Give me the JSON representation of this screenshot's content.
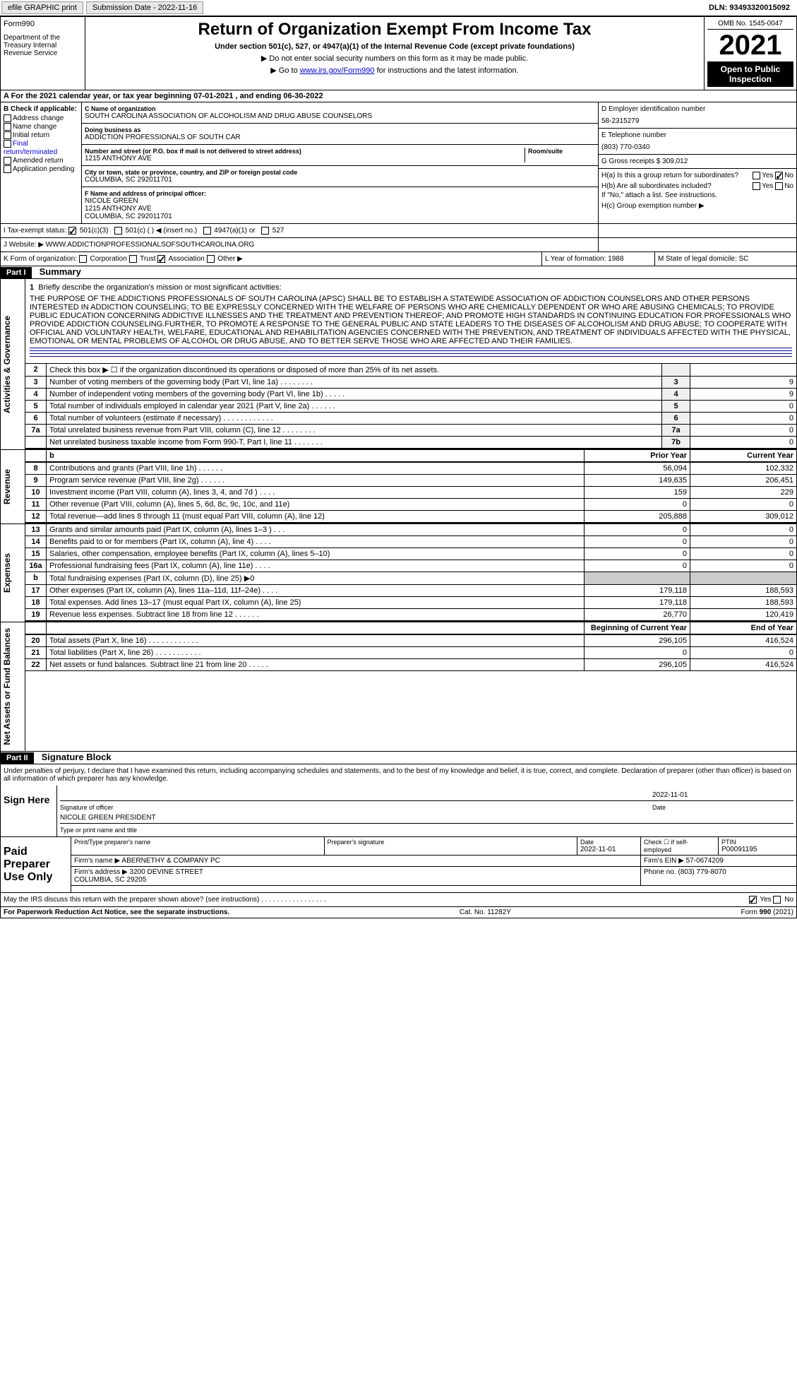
{
  "topbar": {
    "efile": "efile GRAPHIC print",
    "submission_label": "Submission Date - 2022-11-16",
    "dln": "DLN: 93493320015092"
  },
  "header": {
    "form_label": "Form",
    "form_number": "990",
    "dept": "Department of the Treasury Internal Revenue Service",
    "title": "Return of Organization Exempt From Income Tax",
    "subtitle": "Under section 501(c), 527, or 4947(a)(1) of the Internal Revenue Code (except private foundations)",
    "instr1": "▶ Do not enter social security numbers on this form as it may be made public.",
    "instr2_prefix": "▶ Go to ",
    "instr2_link": "www.irs.gov/Form990",
    "instr2_suffix": " for instructions and the latest information.",
    "omb": "OMB No. 1545-0047",
    "year": "2021",
    "open": "Open to Public Inspection"
  },
  "period": "A For the 2021 calendar year, or tax year beginning 07-01-2021    , and ending 06-30-2022",
  "section_b": {
    "header": "B Check if applicable:",
    "items": [
      "Address change",
      "Name change",
      "Initial return",
      "Final return/terminated",
      "Amended return",
      "Application pending"
    ]
  },
  "section_c": {
    "name_label": "C Name of organization",
    "name": "SOUTH CAROLINA ASSOCIATION OF ALCOHOLISM AND DRUG ABUSE COUNSELORS",
    "dba_label": "Doing business as",
    "dba": "ADDICTION PROFESSIONALS OF SOUTH CAR",
    "addr_label": "Number and street (or P.O. box if mail is not delivered to street address)",
    "addr": "1215 ANTHONY AVE",
    "room_label": "Room/suite",
    "city_label": "City or town, state or province, country, and ZIP or foreign postal code",
    "city": "COLUMBIA, SC  292011701",
    "officer_label": "F  Name and address of principal officer:",
    "officer": "NICOLE GREEN\n1215 ANTHONY AVE\nCOLUMBIA, SC  292011701"
  },
  "section_d": {
    "ein_label": "D Employer identification number",
    "ein": "58-2315279",
    "phone_label": "E Telephone number",
    "phone": "(803) 770-0340",
    "gross_label": "G Gross receipts $",
    "gross": "309,012",
    "ha_label": "H(a)  Is this a group return for subordinates?",
    "hb_label": "H(b)  Are all subordinates included?",
    "hb_note": "If \"No,\" attach a list. See instructions.",
    "hc_label": "H(c)  Group exemption number ▶"
  },
  "tax_status": {
    "label": "I  Tax-exempt status:",
    "opts": [
      "501(c)(3)",
      "501(c) (  ) ◀ (insert no.)",
      "4947(a)(1) or",
      "527"
    ]
  },
  "website": {
    "label": "J  Website: ▶",
    "value": "WWW.ADDICTIONPROFESSIONALSOFSOUTHCAROLINA.ORG"
  },
  "form_org": {
    "label": "K Form of organization:",
    "opts": [
      "Corporation",
      "Trust",
      "Association",
      "Other ▶"
    ],
    "year_label": "L Year of formation: 1988",
    "state_label": "M State of legal domicile: SC"
  },
  "part1": {
    "label": "Part I",
    "title": "Summary"
  },
  "mission": {
    "num": "1",
    "label": "Briefly describe the organization's mission or most significant activities:",
    "text": "THE PURPOSE OF THE ADDICTIONS PROFESSIONALS OF SOUTH CAROLINA (APSC) SHALL BE TO ESTABLISH A STATEWIDE ASSOCIATION OF ADDICTION COUNSELORS AND OTHER PERSONS INTERESTED IN ADDICTION COUNSELING; TO BE EXPRESSLY CONCERNED WITH THE WELFARE OF PERSONS WHO ARE CHEMICALLY DEPENDENT OR WHO ARE ABUSING CHEMICALS; TO PROVIDE PUBLIC EDUCATION CONCERNING ADDICTIVE ILLNESSES AND THE TREATMENT AND PREVENTION THEREOF; AND PROMOTE HIGH STANDARDS IN CONTINUING EDUCATION FOR PROFESSIONALS WHO PROVIDE ADDICTION COUNSELING.FURTHER, TO PROMOTE A RESPONSE TO THE GENERAL PUBLIC AND STATE LEADERS TO THE DISEASES OF ALCOHOLISM AND DRUG ABUSE; TO COOPERATE WITH OFFICIAL AND VOLUNTARY HEALTH, WELFARE, EDUCATIONAL AND REHABILITATION AGENCIES CONCERNED WITH THE PREVENTION, AND TREATMENT OF INDIVIDUALS AFFECTED WITH THE PHYSICAL, EMOTIONAL OR MENTAL PROBLEMS OF ALCOHOL OR DRUG ABUSE, AND TO BETTER SERVE THOSE WHO ARE AFFECTED AND THEIR FAMILIES."
  },
  "lines_single": [
    {
      "num": "2",
      "text": "Check this box ▶ ☐ if the organization discontinued its operations or disposed of more than 25% of its net assets.",
      "box": "",
      "val": ""
    },
    {
      "num": "3",
      "text": "Number of voting members of the governing body (Part VI, line 1a)  .    .    .    .    .    .    .    .",
      "box": "3",
      "val": "9"
    },
    {
      "num": "4",
      "text": "Number of independent voting members of the governing body (Part VI, line 1b)   .    .    .    .    .",
      "box": "4",
      "val": "9"
    },
    {
      "num": "5",
      "text": "Total number of individuals employed in calendar year 2021 (Part V, line 2a)   .    .    .    .    .    .",
      "box": "5",
      "val": "0"
    },
    {
      "num": "6",
      "text": "Total number of volunteers (estimate if necessary)   .    .    .    .    .    .    .    .    .    .    .    .",
      "box": "6",
      "val": "0"
    },
    {
      "num": "7a",
      "text": "Total unrelated business revenue from Part VIII, column (C), line 12   .    .    .    .    .    .    .    .",
      "box": "7a",
      "val": "0"
    },
    {
      "num": "",
      "text": "Net unrelated business taxable income from Form 990-T, Part I, line 11   .    .    .    .    .    .    .",
      "box": "7b",
      "val": "0"
    }
  ],
  "col_headers": {
    "prior": "Prior Year",
    "current": "Current Year"
  },
  "revenue": [
    {
      "num": "8",
      "text": "Contributions and grants (Part VIII, line 1h)   .    .    .    .    .    .",
      "prior": "56,094",
      "current": "102,332"
    },
    {
      "num": "9",
      "text": "Program service revenue (Part VIII, line 2g)   .    .    .    .    .    .",
      "prior": "149,635",
      "current": "206,451"
    },
    {
      "num": "10",
      "text": "Investment income (Part VIII, column (A), lines 3, 4, and 7d )   .    .    .    .",
      "prior": "159",
      "current": "229"
    },
    {
      "num": "11",
      "text": "Other revenue (Part VIII, column (A), lines 5, 6d, 8c, 9c, 10c, and 11e)",
      "prior": "0",
      "current": "0"
    },
    {
      "num": "12",
      "text": "Total revenue—add lines 8 through 11 (must equal Part VIII, column (A), line 12)",
      "prior": "205,888",
      "current": "309,012"
    }
  ],
  "expenses": [
    {
      "num": "13",
      "text": "Grants and similar amounts paid (Part IX, column (A), lines 1–3 )  .    .    .",
      "prior": "0",
      "current": "0"
    },
    {
      "num": "14",
      "text": "Benefits paid to or for members (Part IX, column (A), line 4)   .    .    .    .",
      "prior": "0",
      "current": "0"
    },
    {
      "num": "15",
      "text": "Salaries, other compensation, employee benefits (Part IX, column (A), lines 5–10)",
      "prior": "0",
      "current": "0"
    },
    {
      "num": "16a",
      "text": "Professional fundraising fees (Part IX, column (A), line 11e)   .    .    .    .",
      "prior": "0",
      "current": "0"
    },
    {
      "num": "b",
      "text": "Total fundraising expenses (Part IX, column (D), line 25) ▶0",
      "prior": "",
      "current": ""
    },
    {
      "num": "17",
      "text": "Other expenses (Part IX, column (A), lines 11a–11d, 11f–24e)   .    .    .    .",
      "prior": "179,118",
      "current": "188,593"
    },
    {
      "num": "18",
      "text": "Total expenses. Add lines 13–17 (must equal Part IX, column (A), line 25)",
      "prior": "179,118",
      "current": "188,593"
    },
    {
      "num": "19",
      "text": "Revenue less expenses. Subtract line 18 from line 12   .    .    .    .    .    .",
      "prior": "26,770",
      "current": "120,419"
    }
  ],
  "net_headers": {
    "begin": "Beginning of Current Year",
    "end": "End of Year"
  },
  "net": [
    {
      "num": "20",
      "text": "Total assets (Part X, line 16)   .    .    .    .    .    .    .    .    .    .    .    .",
      "prior": "296,105",
      "current": "416,524"
    },
    {
      "num": "21",
      "text": "Total liabilities (Part X, line 26)   .    .    .    .    .    .    .    .    .    .    .",
      "prior": "0",
      "current": "0"
    },
    {
      "num": "22",
      "text": "Net assets or fund balances. Subtract line 21 from line 20   .    .    .    .    .",
      "prior": "296,105",
      "current": "416,524"
    }
  ],
  "side_labels": {
    "gov": "Activities & Governance",
    "rev": "Revenue",
    "exp": "Expenses",
    "net": "Net Assets or Fund Balances"
  },
  "part2": {
    "label": "Part II",
    "title": "Signature Block",
    "penalty": "Under penalties of perjury, I declare that I have examined this return, including accompanying schedules and statements, and to the best of my knowledge and belief, it is true, correct, and complete. Declaration of preparer (other than officer) is based on all information of which preparer has any knowledge.",
    "sign_label": "Sign Here",
    "sig_date": "2022-11-01",
    "sig_officer_label": "Signature of officer",
    "date_label": "Date",
    "officer_name": "NICOLE GREEN  PRESIDENT",
    "officer_type_label": "Type or print name and title",
    "paid_label": "Paid Preparer Use Only",
    "prep_name_label": "Print/Type preparer's name",
    "prep_sig_label": "Preparer's signature",
    "prep_date_label": "Date",
    "prep_date": "2022-11-01",
    "check_self": "Check ☐ if self-employed",
    "ptin_label": "PTIN",
    "ptin": "P00091195",
    "firm_name_label": "Firm's name      ▶",
    "firm_name": "ABERNETHY & COMPANY PC",
    "firm_ein_label": "Firm's EIN ▶",
    "firm_ein": "57-0674209",
    "firm_addr_label": "Firm's address ▶",
    "firm_addr": "3200 DEVINE STREET\nCOLUMBIA, SC  29205",
    "firm_phone_label": "Phone no.",
    "firm_phone": "(803) 779-8070",
    "discuss": "May the IRS discuss this return with the preparer shown above? (see instructions)   .    .    .    .    .    .    .    .    .    .    .    .    .    .    .    .    ."
  },
  "footer": {
    "paperwork": "For Paperwork Reduction Act Notice, see the separate instructions.",
    "cat": "Cat. No. 11282Y",
    "form": "Form 990 (2021)"
  }
}
